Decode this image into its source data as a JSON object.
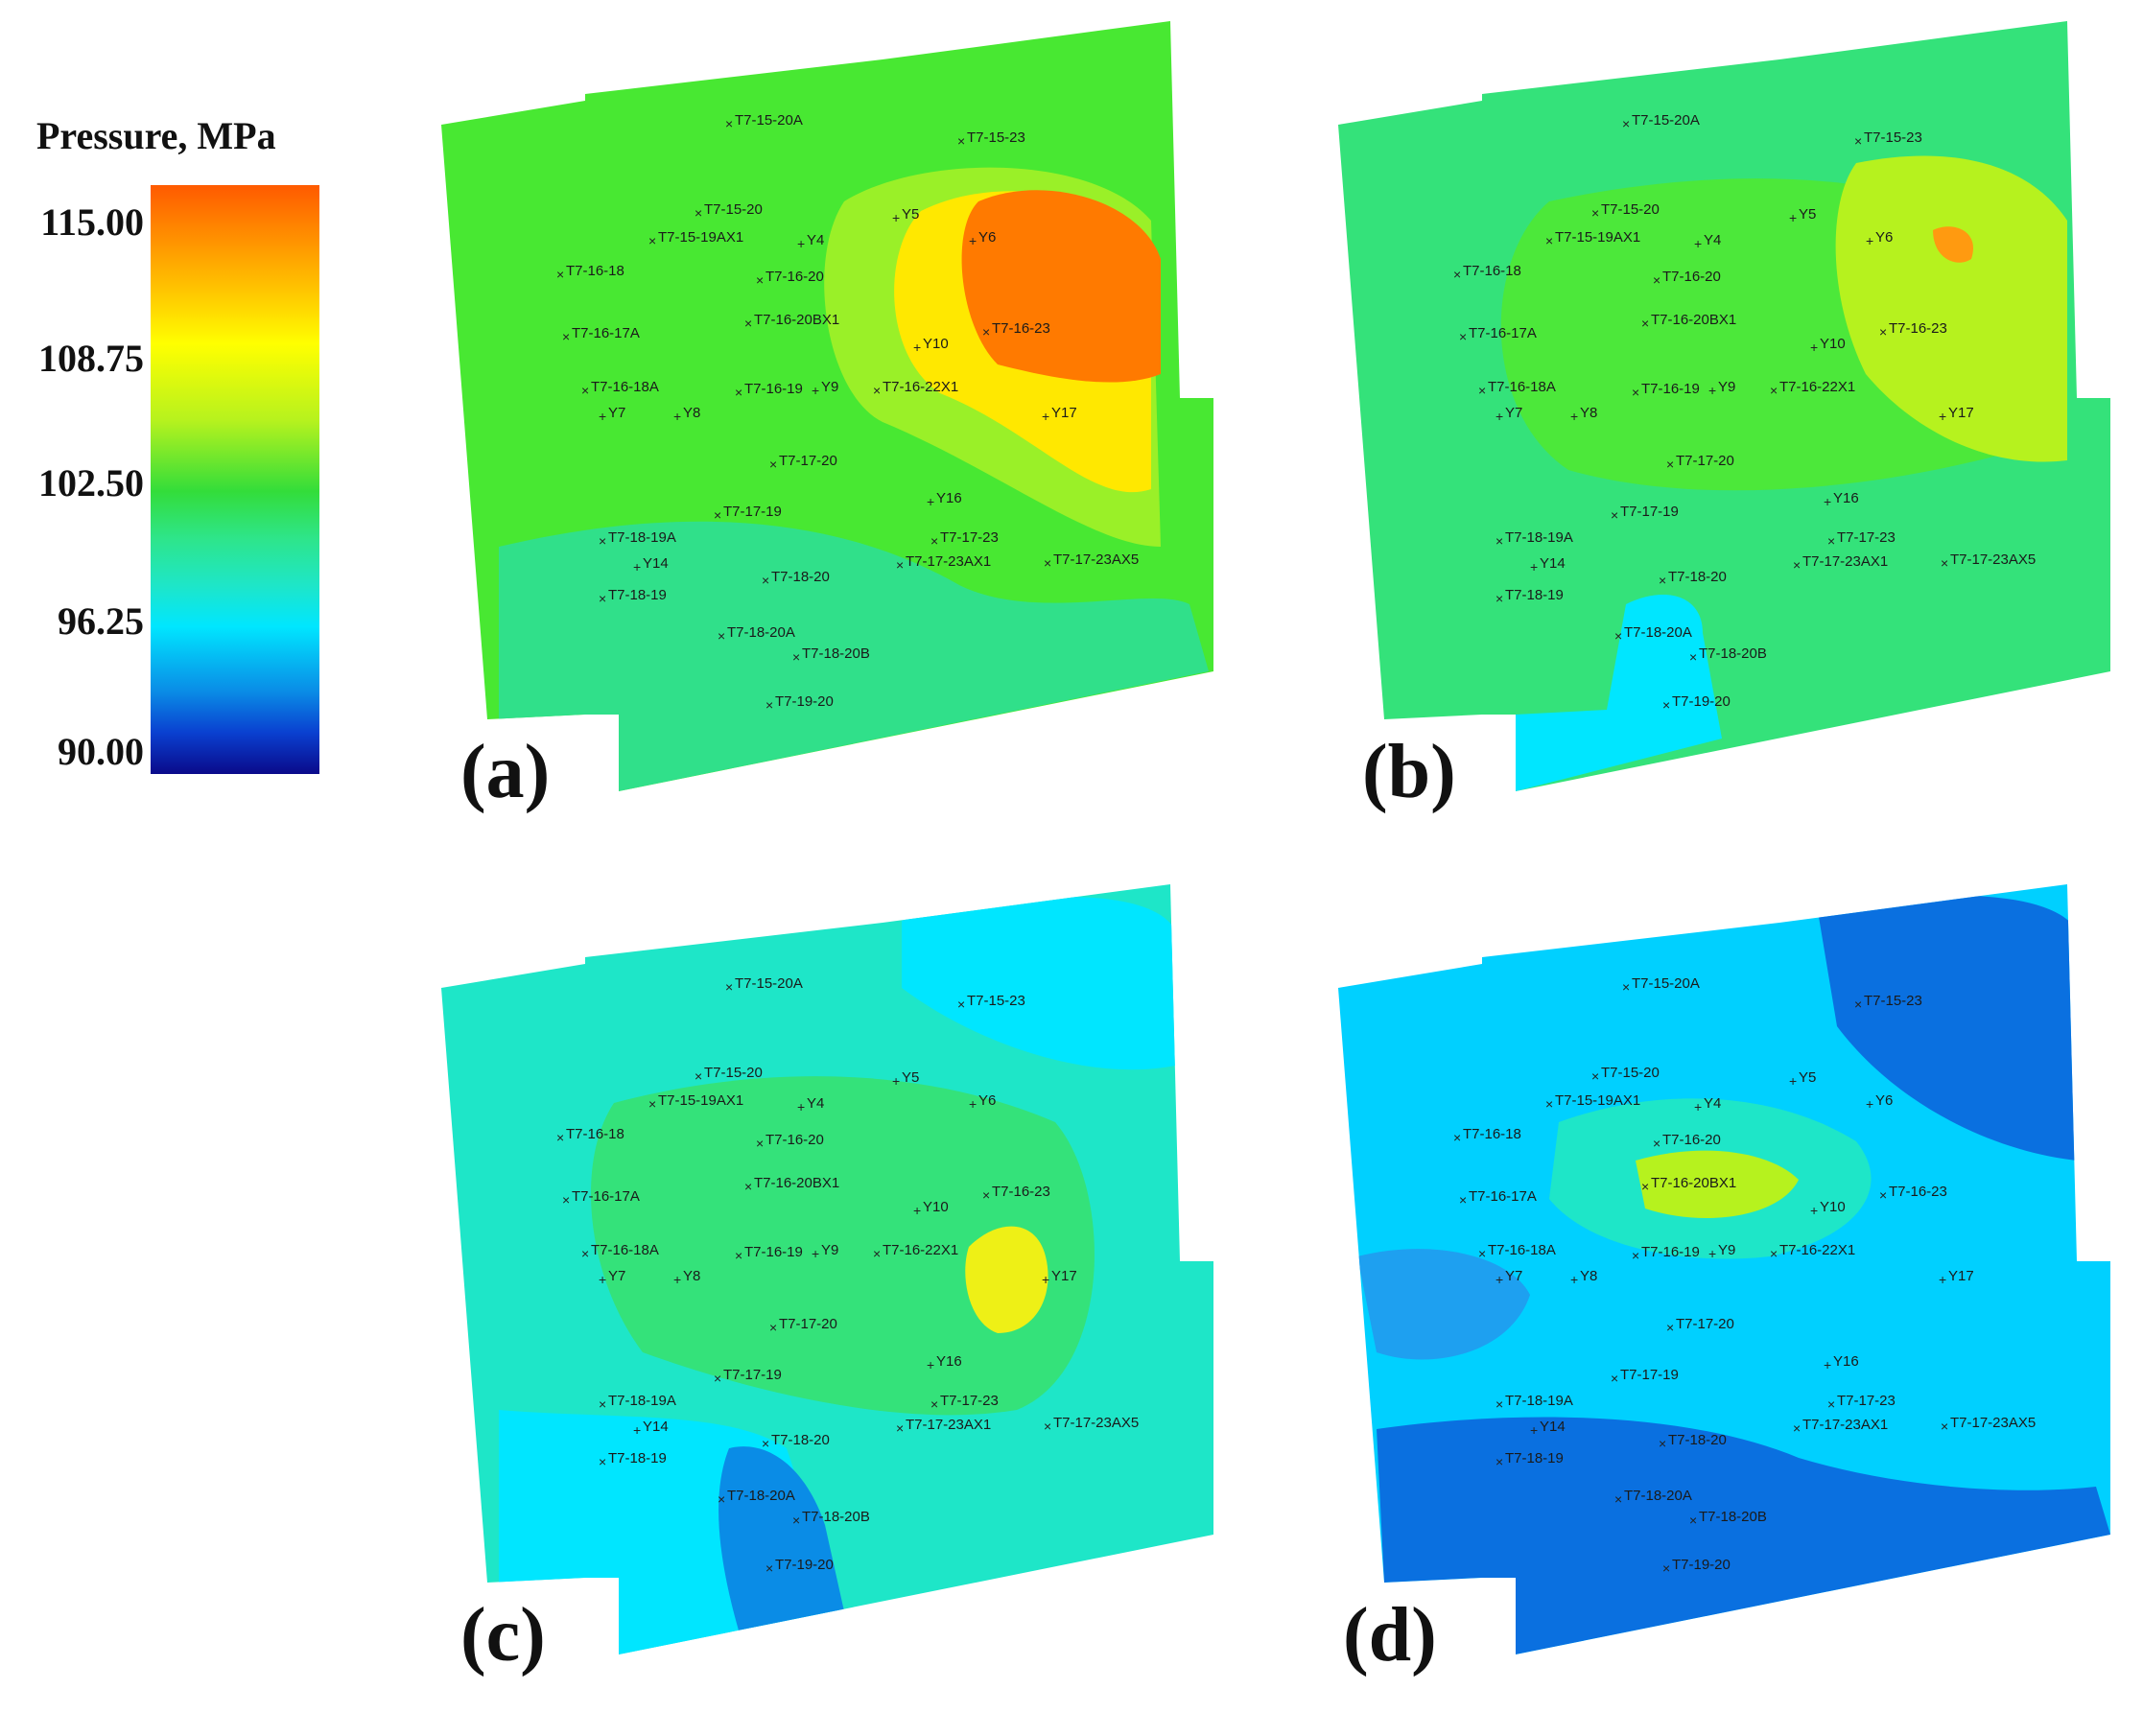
{
  "legend": {
    "title": "Pressure, MPa",
    "ticks": [
      "115.00",
      "108.75",
      "102.50",
      "96.25",
      "90.00"
    ]
  },
  "panels": [
    {
      "label": "(a)"
    },
    {
      "label": "(b)"
    },
    {
      "label": "(c)"
    },
    {
      "label": "(d)"
    }
  ],
  "wells": [
    "T7-15-20A",
    "T7-15-23",
    "T7-15-20",
    "Y5",
    "T7-15-19AX1",
    "Y4",
    "Y6",
    "T7-16-18",
    "T7-16-20",
    "T7-16-17A",
    "T7-16-20BX1",
    "T7-16-23",
    "Y10",
    "T7-16-18A",
    "T7-16-19",
    "Y9",
    "T7-16-22X1",
    "Y7",
    "Y8",
    "Y17",
    "T7-17-20",
    "Y16",
    "T7-17-19",
    "T7-18-19A",
    "T7-17-23",
    "Y14",
    "T7-17-23AX1",
    "T7-17-23AX5",
    "T7-18-20",
    "T7-18-19",
    "T7-18-20A",
    "T7-18-20B",
    "T7-19-20"
  ],
  "colors": {
    "high": "#ff6a00",
    "mid_high": "#ffff00",
    "mid": "#33dd3a",
    "mid_low": "#1ee6c8",
    "low": "#00e6ff",
    "lowest": "#0a0a8a"
  }
}
